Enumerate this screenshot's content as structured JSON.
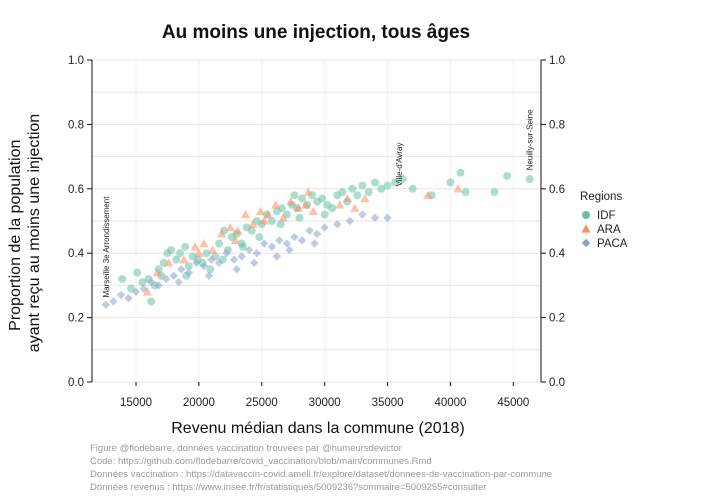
{
  "chart_data": {
    "type": "scatter",
    "title": "Au moins une injection, tous âges",
    "xlabel": "Revenu médian dans la commune (2018)",
    "ylabel_lines": [
      "Proportion de la population",
      "ayant reçu au moins une injection"
    ],
    "xlim": [
      11500,
      47200
    ],
    "ylim": [
      0,
      1
    ],
    "x_ticks": [
      15000,
      20000,
      25000,
      30000,
      35000,
      40000,
      45000
    ],
    "y_ticks": [
      "0.0",
      "0.2",
      "0.4",
      "0.6",
      "0.8",
      "1.0"
    ],
    "grid": true,
    "legend_title": "Regions",
    "legend_position": "right",
    "series": [
      {
        "name": "IDF",
        "color": "#66c2a5",
        "marker": "circle",
        "points": [
          [
            13900,
            0.32
          ],
          [
            14600,
            0.29
          ],
          [
            15100,
            0.34
          ],
          [
            15500,
            0.31
          ],
          [
            16000,
            0.32
          ],
          [
            16200,
            0.25
          ],
          [
            16500,
            0.3
          ],
          [
            16800,
            0.35
          ],
          [
            17200,
            0.37
          ],
          [
            17500,
            0.4
          ],
          [
            17800,
            0.41
          ],
          [
            18200,
            0.38
          ],
          [
            18500,
            0.4
          ],
          [
            18900,
            0.42
          ],
          [
            19200,
            0.36
          ],
          [
            19500,
            0.39
          ],
          [
            19900,
            0.38
          ],
          [
            20300,
            0.37
          ],
          [
            20600,
            0.4
          ],
          [
            20900,
            0.35
          ],
          [
            21300,
            0.39
          ],
          [
            21600,
            0.43
          ],
          [
            21900,
            0.38
          ],
          [
            22300,
            0.41
          ],
          [
            22600,
            0.45
          ],
          [
            23000,
            0.46
          ],
          [
            23400,
            0.43
          ],
          [
            23800,
            0.48
          ],
          [
            24200,
            0.47
          ],
          [
            24600,
            0.5
          ],
          [
            25000,
            0.49
          ],
          [
            25400,
            0.52
          ],
          [
            25800,
            0.5
          ],
          [
            26200,
            0.53
          ],
          [
            26600,
            0.54
          ],
          [
            27000,
            0.52
          ],
          [
            27400,
            0.55
          ],
          [
            27800,
            0.54
          ],
          [
            28200,
            0.57
          ],
          [
            28600,
            0.55
          ],
          [
            29000,
            0.58
          ],
          [
            29400,
            0.56
          ],
          [
            29800,
            0.57
          ],
          [
            30200,
            0.55
          ],
          [
            30600,
            0.54
          ],
          [
            31000,
            0.58
          ],
          [
            31400,
            0.59
          ],
          [
            31800,
            0.56
          ],
          [
            32200,
            0.6
          ],
          [
            32600,
            0.58
          ],
          [
            33000,
            0.61
          ],
          [
            33500,
            0.59
          ],
          [
            34000,
            0.62
          ],
          [
            34500,
            0.6
          ],
          [
            35000,
            0.61
          ],
          [
            35600,
            0.62
          ],
          [
            36200,
            0.63
          ],
          [
            37000,
            0.6
          ],
          [
            38500,
            0.58
          ],
          [
            40000,
            0.62
          ],
          [
            40800,
            0.65
          ],
          [
            41200,
            0.59
          ],
          [
            43500,
            0.59
          ],
          [
            44500,
            0.64
          ],
          [
            46300,
            0.63
          ],
          [
            22000,
            0.47
          ],
          [
            23500,
            0.42
          ],
          [
            26500,
            0.49
          ],
          [
            28000,
            0.51
          ],
          [
            30000,
            0.52
          ],
          [
            19000,
            0.33
          ],
          [
            17000,
            0.33
          ],
          [
            24800,
            0.45
          ],
          [
            27600,
            0.58
          ]
        ]
      },
      {
        "name": "ARA",
        "color": "#fc8d62",
        "marker": "triangle",
        "points": [
          [
            15900,
            0.28
          ],
          [
            16700,
            0.34
          ],
          [
            17600,
            0.37
          ],
          [
            18800,
            0.38
          ],
          [
            19700,
            0.42
          ],
          [
            20400,
            0.43
          ],
          [
            21100,
            0.41
          ],
          [
            21800,
            0.46
          ],
          [
            22500,
            0.48
          ],
          [
            23100,
            0.47
          ],
          [
            23700,
            0.52
          ],
          [
            24300,
            0.49
          ],
          [
            24900,
            0.53
          ],
          [
            25500,
            0.52
          ],
          [
            26100,
            0.55
          ],
          [
            26700,
            0.51
          ],
          [
            27300,
            0.56
          ],
          [
            27900,
            0.54
          ],
          [
            28500,
            0.55
          ],
          [
            29100,
            0.53
          ],
          [
            31200,
            0.55
          ],
          [
            31800,
            0.57
          ],
          [
            32400,
            0.54
          ],
          [
            33200,
            0.57
          ],
          [
            38200,
            0.58
          ],
          [
            40600,
            0.6
          ],
          [
            20000,
            0.4
          ],
          [
            22900,
            0.44
          ],
          [
            25200,
            0.5
          ],
          [
            28700,
            0.59
          ]
        ]
      },
      {
        "name": "PACA",
        "color": "#8da0cb",
        "marker": "diamond",
        "points": [
          [
            12600,
            0.24
          ],
          [
            13200,
            0.25
          ],
          [
            13800,
            0.27
          ],
          [
            14400,
            0.26
          ],
          [
            15000,
            0.28
          ],
          [
            15600,
            0.29
          ],
          [
            16200,
            0.31
          ],
          [
            16800,
            0.3
          ],
          [
            17400,
            0.32
          ],
          [
            18000,
            0.33
          ],
          [
            18600,
            0.35
          ],
          [
            19200,
            0.34
          ],
          [
            19800,
            0.37
          ],
          [
            20400,
            0.36
          ],
          [
            21000,
            0.38
          ],
          [
            21600,
            0.37
          ],
          [
            22200,
            0.4
          ],
          [
            22800,
            0.38
          ],
          [
            23400,
            0.39
          ],
          [
            24000,
            0.41
          ],
          [
            24600,
            0.4
          ],
          [
            25200,
            0.43
          ],
          [
            25800,
            0.42
          ],
          [
            26400,
            0.44
          ],
          [
            27000,
            0.43
          ],
          [
            27600,
            0.45
          ],
          [
            28200,
            0.44
          ],
          [
            28800,
            0.47
          ],
          [
            29400,
            0.46
          ],
          [
            30000,
            0.48
          ],
          [
            31000,
            0.49
          ],
          [
            32000,
            0.5
          ],
          [
            33000,
            0.52
          ],
          [
            34000,
            0.51
          ],
          [
            35000,
            0.51
          ],
          [
            23000,
            0.35
          ],
          [
            24400,
            0.37
          ],
          [
            26200,
            0.39
          ],
          [
            27200,
            0.41
          ],
          [
            20800,
            0.33
          ],
          [
            18400,
            0.31
          ],
          [
            29200,
            0.43
          ]
        ]
      }
    ],
    "annotations": [
      {
        "text": "Marseille 3e Arrondissement",
        "x": 12600,
        "y": 0.25
      },
      {
        "text": "Ville-d'Avray",
        "x": 35900,
        "y": 0.595
      },
      {
        "text": "Neuilly-sur-Seine",
        "x": 46300,
        "y": 0.645
      }
    ]
  },
  "caption": [
    "Figure @flodebarre, données vaccination trouvées par @humeursdevictor",
    "Code: https://github.com/flodebarre/covid_vaccination/blob/main/communes.Rmd",
    "Données vaccination : https://datavaccin-covid.ameli.fr/explore/dataset/donnees-de-vaccination-par-commune",
    "Données revenus : https://www.insee.fr/fr/statistiques/5009236?sommaire=5009255#consulter"
  ]
}
